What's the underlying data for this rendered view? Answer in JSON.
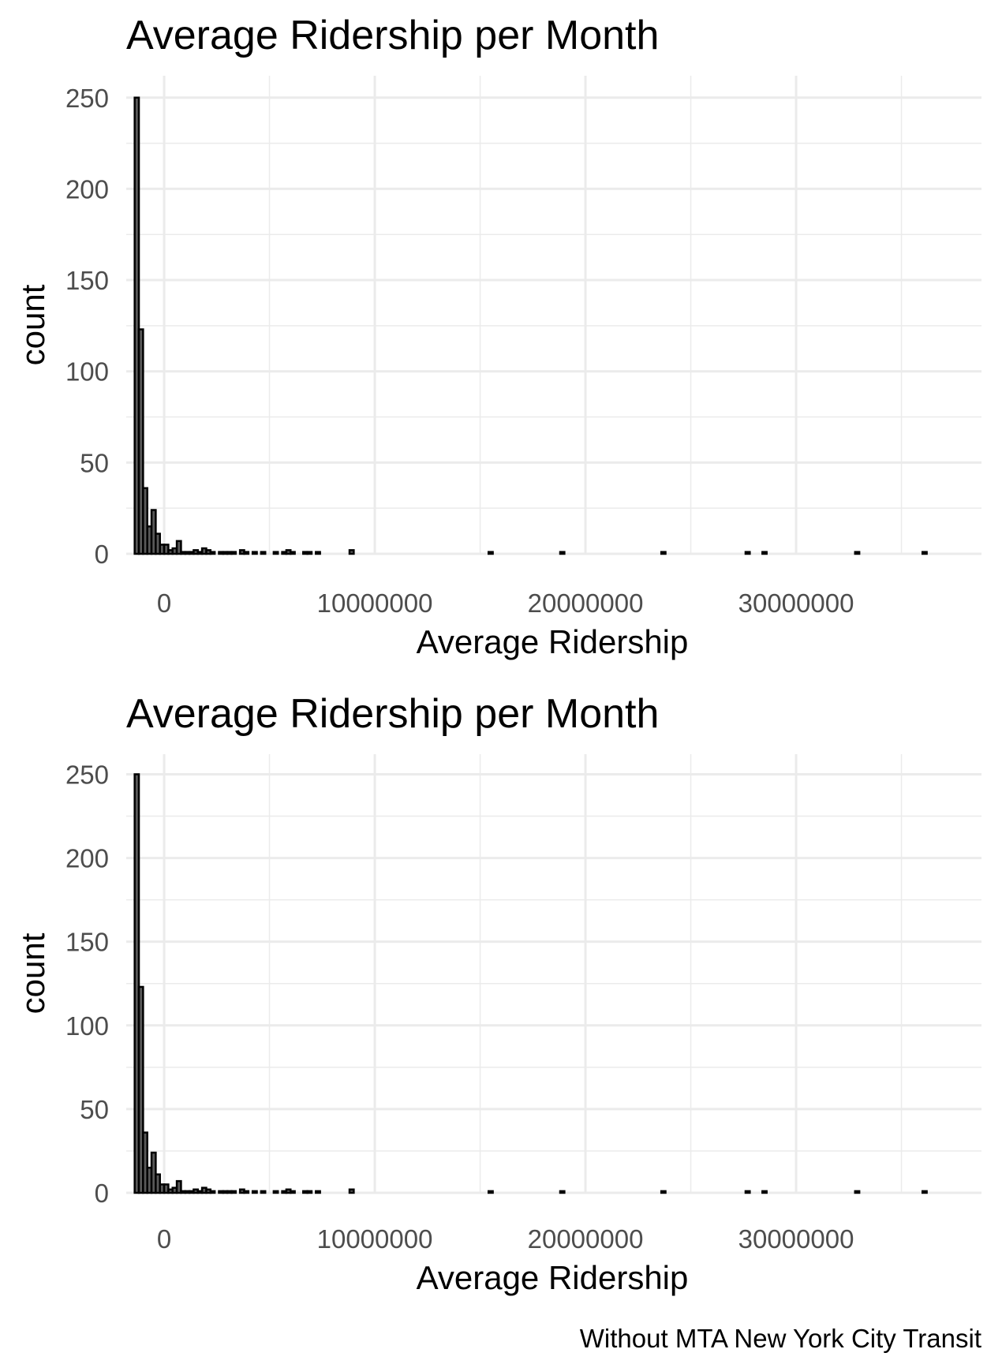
{
  "chart_data": [
    {
      "type": "histogram",
      "title": "Average Ridership per Month",
      "xlabel": "Average Ridership",
      "ylabel": "count",
      "xlim": [
        -1800000,
        38800000
      ],
      "ylim": [
        0,
        262
      ],
      "x_ticks": [
        0,
        10000000,
        20000000,
        30000000
      ],
      "x_tick_labels": [
        "0",
        "10000000",
        "20000000",
        "30000000"
      ],
      "y_ticks": [
        0,
        50,
        100,
        150,
        200,
        250
      ],
      "y_tick_labels": [
        "0",
        "50",
        "100",
        "150",
        "200",
        "250"
      ],
      "grid": true,
      "bin_width": 200000,
      "bins": [
        {
          "x": -1300000,
          "count": 250
        },
        {
          "x": -1100000,
          "count": 123
        },
        {
          "x": -900000,
          "count": 36
        },
        {
          "x": -700000,
          "count": 15
        },
        {
          "x": -500000,
          "count": 24
        },
        {
          "x": -300000,
          "count": 11
        },
        {
          "x": -100000,
          "count": 5
        },
        {
          "x": 100000,
          "count": 5
        },
        {
          "x": 300000,
          "count": 2
        },
        {
          "x": 500000,
          "count": 3
        },
        {
          "x": 700000,
          "count": 7
        },
        {
          "x": 900000,
          "count": 1
        },
        {
          "x": 1100000,
          "count": 1
        },
        {
          "x": 1300000,
          "count": 1
        },
        {
          "x": 1500000,
          "count": 2
        },
        {
          "x": 1700000,
          "count": 1
        },
        {
          "x": 1900000,
          "count": 3
        },
        {
          "x": 2100000,
          "count": 2
        },
        {
          "x": 2300000,
          "count": 1
        },
        {
          "x": 2700000,
          "count": 1
        },
        {
          "x": 2900000,
          "count": 1
        },
        {
          "x": 3100000,
          "count": 1
        },
        {
          "x": 3300000,
          "count": 1
        },
        {
          "x": 3700000,
          "count": 2
        },
        {
          "x": 3900000,
          "count": 1
        },
        {
          "x": 4300000,
          "count": 1
        },
        {
          "x": 4700000,
          "count": 1
        },
        {
          "x": 5300000,
          "count": 1
        },
        {
          "x": 5700000,
          "count": 1
        },
        {
          "x": 5900000,
          "count": 2
        },
        {
          "x": 6100000,
          "count": 1
        },
        {
          "x": 6700000,
          "count": 1
        },
        {
          "x": 6900000,
          "count": 1
        },
        {
          "x": 7300000,
          "count": 1
        },
        {
          "x": 8900000,
          "count": 2
        },
        {
          "x": 15500000,
          "count": 1
        },
        {
          "x": 18900000,
          "count": 1
        },
        {
          "x": 23700000,
          "count": 1
        },
        {
          "x": 27700000,
          "count": 1
        },
        {
          "x": 28500000,
          "count": 1
        },
        {
          "x": 32900000,
          "count": 1
        },
        {
          "x": 36100000,
          "count": 1
        }
      ]
    },
    {
      "type": "histogram",
      "title": "Average Ridership per Month",
      "xlabel": "Average Ridership",
      "ylabel": "count",
      "xlim": [
        -1800000,
        38800000
      ],
      "ylim": [
        0,
        262
      ],
      "x_ticks": [
        0,
        10000000,
        20000000,
        30000000
      ],
      "x_tick_labels": [
        "0",
        "10000000",
        "20000000",
        "30000000"
      ],
      "y_ticks": [
        0,
        50,
        100,
        150,
        200,
        250
      ],
      "y_tick_labels": [
        "0",
        "50",
        "100",
        "150",
        "200",
        "250"
      ],
      "grid": true,
      "bin_width": 200000,
      "bins": [
        {
          "x": -1300000,
          "count": 250
        },
        {
          "x": -1100000,
          "count": 123
        },
        {
          "x": -900000,
          "count": 36
        },
        {
          "x": -700000,
          "count": 15
        },
        {
          "x": -500000,
          "count": 24
        },
        {
          "x": -300000,
          "count": 11
        },
        {
          "x": -100000,
          "count": 5
        },
        {
          "x": 100000,
          "count": 5
        },
        {
          "x": 300000,
          "count": 2
        },
        {
          "x": 500000,
          "count": 3
        },
        {
          "x": 700000,
          "count": 7
        },
        {
          "x": 900000,
          "count": 1
        },
        {
          "x": 1100000,
          "count": 1
        },
        {
          "x": 1300000,
          "count": 1
        },
        {
          "x": 1500000,
          "count": 2
        },
        {
          "x": 1700000,
          "count": 1
        },
        {
          "x": 1900000,
          "count": 3
        },
        {
          "x": 2100000,
          "count": 2
        },
        {
          "x": 2300000,
          "count": 1
        },
        {
          "x": 2700000,
          "count": 1
        },
        {
          "x": 2900000,
          "count": 1
        },
        {
          "x": 3100000,
          "count": 1
        },
        {
          "x": 3300000,
          "count": 1
        },
        {
          "x": 3700000,
          "count": 2
        },
        {
          "x": 3900000,
          "count": 1
        },
        {
          "x": 4300000,
          "count": 1
        },
        {
          "x": 4700000,
          "count": 1
        },
        {
          "x": 5300000,
          "count": 1
        },
        {
          "x": 5700000,
          "count": 1
        },
        {
          "x": 5900000,
          "count": 2
        },
        {
          "x": 6100000,
          "count": 1
        },
        {
          "x": 6700000,
          "count": 1
        },
        {
          "x": 6900000,
          "count": 1
        },
        {
          "x": 7300000,
          "count": 1
        },
        {
          "x": 8900000,
          "count": 2
        },
        {
          "x": 15500000,
          "count": 1
        },
        {
          "x": 18900000,
          "count": 1
        },
        {
          "x": 23700000,
          "count": 1
        },
        {
          "x": 27700000,
          "count": 1
        },
        {
          "x": 28500000,
          "count": 1
        },
        {
          "x": 32900000,
          "count": 1
        },
        {
          "x": 36100000,
          "count": 1
        }
      ]
    }
  ],
  "caption": "Without MTA New York City Transit"
}
